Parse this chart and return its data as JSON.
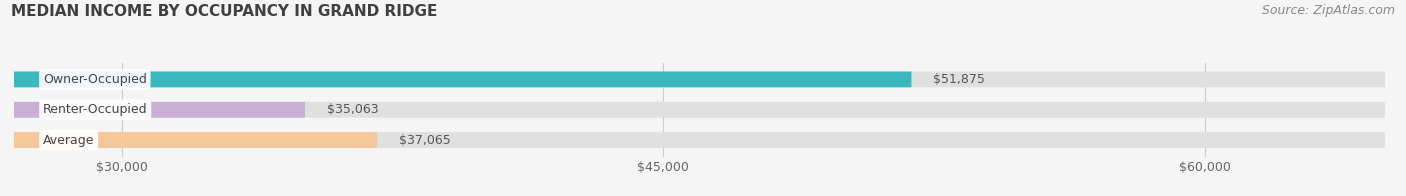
{
  "title": "MEDIAN INCOME BY OCCUPANCY IN GRAND RIDGE",
  "source": "Source: ZipAtlas.com",
  "categories": [
    "Owner-Occupied",
    "Renter-Occupied",
    "Average"
  ],
  "values": [
    51875,
    35063,
    37065
  ],
  "bar_colors": [
    "#3ab8c0",
    "#c9aed6",
    "#f5c89a"
  ],
  "value_labels": [
    "$51,875",
    "$35,063",
    "$37,065"
  ],
  "x_ticks": [
    30000,
    45000,
    60000
  ],
  "x_tick_labels": [
    "$30,000",
    "$45,000",
    "$60,000"
  ],
  "xlim": [
    27000,
    65000
  ],
  "title_fontsize": 11,
  "source_fontsize": 9,
  "bar_label_fontsize": 9,
  "value_fontsize": 9,
  "background_color": "#f5f5f5",
  "bar_height": 0.52,
  "value_label_color": "#555555",
  "title_color": "#404040",
  "source_color": "#888888"
}
